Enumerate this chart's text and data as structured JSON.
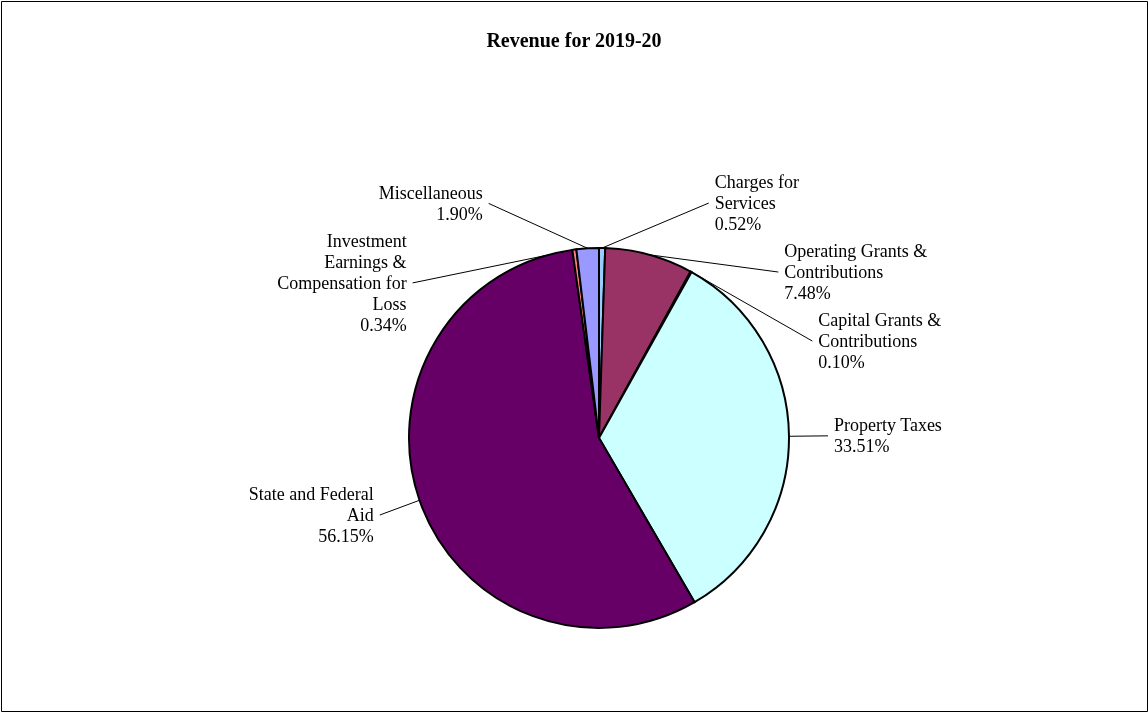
{
  "chart_data": {
    "type": "pie",
    "title": "Revenue for 2019-20",
    "categories": [
      "Charges for Services",
      "Operating Grants & Contributions",
      "Capital Grants & Contributions",
      "Property Taxes",
      "State and Federal Aid",
      "Investment Earnings & Compensation for Loss",
      "Miscellaneous"
    ],
    "values": [
      0.52,
      7.48,
      0.1,
      33.51,
      56.15,
      0.34,
      1.9
    ],
    "value_labels": [
      "0.52%",
      "7.48%",
      "0.10%",
      "33.51%",
      "56.15%",
      "0.34%",
      "1.90%"
    ],
    "colors": [
      "#99ccff",
      "#993366",
      "#0066cc",
      "#ccffff",
      "#660066",
      "#ff8080",
      "#9999ff"
    ]
  }
}
